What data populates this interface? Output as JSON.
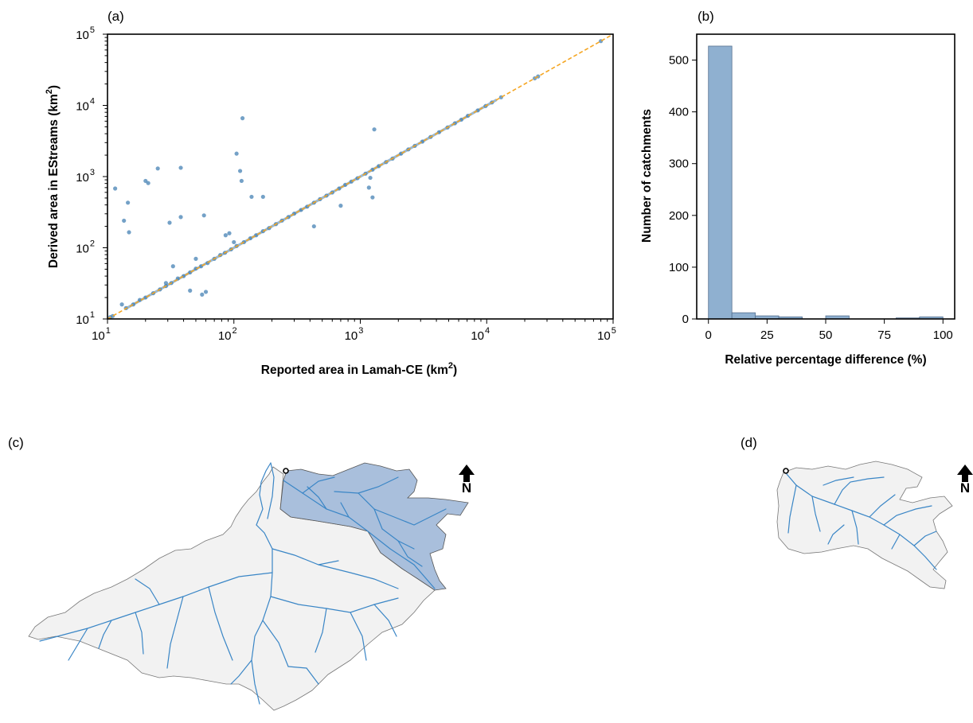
{
  "colors": {
    "points": "#4682b4",
    "diagonal": "#f5a623",
    "bars": "#8fb0d0",
    "bar_edge": "#55708f",
    "catchment_fill": "#f2f2f2",
    "catchment_edge": "#777777",
    "subcatchment_fill": "#a9bfdc",
    "river": "#3a86c6"
  },
  "chart_data": [
    {
      "panel": "(a)",
      "type": "scatter",
      "xlabel": "Reported area in Lamah-CE (km",
      "ylabel": "Derived area in EStreams (km",
      "unit_superscript": "2",
      "xscale": "log",
      "yscale": "log",
      "xlim": [
        10,
        100000
      ],
      "ylim": [
        10,
        100000
      ],
      "x_ticks": [
        {
          "base": "10",
          "exp": "1"
        },
        {
          "base": "10",
          "exp": "2"
        },
        {
          "base": "10",
          "exp": "3"
        },
        {
          "base": "10",
          "exp": "4"
        },
        {
          "base": "10",
          "exp": "5"
        }
      ],
      "y_ticks": [
        {
          "base": "10",
          "exp": "1"
        },
        {
          "base": "10",
          "exp": "2"
        },
        {
          "base": "10",
          "exp": "3"
        },
        {
          "base": "10",
          "exp": "4"
        },
        {
          "base": "10",
          "exp": "5"
        }
      ],
      "reference_line": "1:1",
      "outliers": [
        [
          11.5,
          680
        ],
        [
          13.5,
          240
        ],
        [
          14.5,
          430
        ],
        [
          14.8,
          165
        ],
        [
          13.0,
          16
        ],
        [
          20,
          870
        ],
        [
          21,
          810
        ],
        [
          25,
          1300
        ],
        [
          31,
          225
        ],
        [
          38,
          270
        ],
        [
          38,
          1330
        ],
        [
          58,
          285
        ],
        [
          56,
          22
        ],
        [
          60,
          24
        ],
        [
          92,
          160
        ],
        [
          100,
          120
        ],
        [
          86,
          150
        ],
        [
          105,
          2100
        ],
        [
          112,
          1200
        ],
        [
          115,
          870
        ],
        [
          117,
          6600
        ],
        [
          138,
          520
        ],
        [
          170,
          520
        ],
        [
          430,
          200
        ],
        [
          700,
          390
        ],
        [
          1170,
          700
        ],
        [
          1200,
          960
        ],
        [
          1250,
          510
        ],
        [
          1290,
          4600
        ],
        [
          50,
          70
        ],
        [
          33,
          55
        ],
        [
          29,
          32
        ],
        [
          45,
          25
        ]
      ],
      "line_points": [
        [
          10.5,
          10.6
        ],
        [
          11,
          11
        ],
        [
          14,
          14.2
        ],
        [
          16,
          16
        ],
        [
          18,
          18.5
        ],
        [
          20,
          20
        ],
        [
          23,
          23
        ],
        [
          26,
          26
        ],
        [
          29,
          29
        ],
        [
          32,
          32
        ],
        [
          36,
          37
        ],
        [
          40,
          40
        ],
        [
          45,
          45
        ],
        [
          50,
          51
        ],
        [
          55,
          55
        ],
        [
          62,
          61
        ],
        [
          70,
          70
        ],
        [
          78,
          79
        ],
        [
          85,
          85
        ],
        [
          95,
          95
        ],
        [
          105,
          106
        ],
        [
          120,
          120
        ],
        [
          135,
          136
        ],
        [
          150,
          150
        ],
        [
          170,
          171
        ],
        [
          190,
          189
        ],
        [
          215,
          215
        ],
        [
          240,
          241
        ],
        [
          270,
          270
        ],
        [
          300,
          302
        ],
        [
          340,
          340
        ],
        [
          380,
          378
        ],
        [
          430,
          430
        ],
        [
          480,
          482
        ],
        [
          540,
          540
        ],
        [
          600,
          598
        ],
        [
          680,
          680
        ],
        [
          760,
          765
        ],
        [
          850,
          850
        ],
        [
          950,
          948
        ],
        [
          1100,
          1100
        ],
        [
          1250,
          1250
        ],
        [
          1400,
          1402
        ],
        [
          1600,
          1600
        ],
        [
          1800,
          1790
        ],
        [
          2100,
          2100
        ],
        [
          2400,
          2410
        ],
        [
          2700,
          2700
        ],
        [
          3100,
          3100
        ],
        [
          3600,
          3600
        ],
        [
          4200,
          4200
        ],
        [
          4900,
          4900
        ],
        [
          5600,
          5600
        ],
        [
          6300,
          6300
        ],
        [
          7100,
          7150
        ],
        [
          8500,
          8500
        ],
        [
          9800,
          9800
        ],
        [
          11000,
          11000
        ],
        [
          13000,
          13000
        ],
        [
          24000,
          24000
        ],
        [
          25500,
          25500
        ],
        [
          80000,
          80000
        ]
      ]
    },
    {
      "panel": "(b)",
      "type": "bar",
      "xlabel": "Relative percentage difference (%)",
      "ylabel": "Number of catchments",
      "bin_edges": [
        0,
        10,
        20,
        30,
        40,
        50,
        60,
        70,
        80,
        90,
        100
      ],
      "values": [
        527,
        12,
        6,
        4,
        0,
        6,
        0,
        0,
        2,
        4
      ],
      "xlim": [
        -5,
        105
      ],
      "ylim": [
        0,
        550
      ],
      "x_ticks": [
        "0",
        "25",
        "50",
        "75",
        "100"
      ],
      "y_ticks": [
        "0",
        "100",
        "200",
        "300",
        "400",
        "500"
      ]
    }
  ],
  "maps": {
    "c": {
      "label": "(c)",
      "north": "N"
    },
    "d": {
      "label": "(d)",
      "north": "N"
    }
  }
}
